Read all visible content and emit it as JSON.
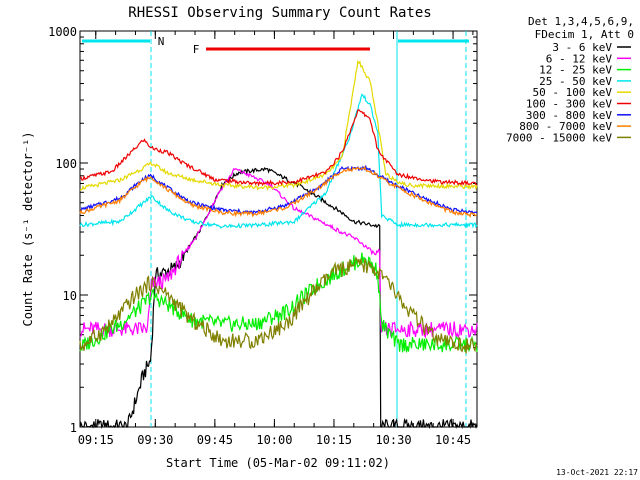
{
  "chart_data": {
    "type": "line",
    "title": "RHESSI Observing Summary Count Rates",
    "xlabel": "Start Time (05-Mar-02 09:11:02)",
    "ylabel": "Count Rate (s⁻¹ detector⁻¹)",
    "y_scale": "log",
    "ylim": [
      1,
      1000
    ],
    "xlim_minutes_after_start": [
      0,
      100
    ],
    "x_ticks": [
      "09:15",
      "09:30",
      "09:45",
      "10:00",
      "10:15",
      "10:30",
      "10:45"
    ],
    "y_ticks": [
      "1",
      "10",
      "100",
      "1000"
    ],
    "legend_header": [
      "Det 1,3,4,5,6,9,",
      "FDecim 1, Att 0"
    ],
    "footer_date": "13-Oct-2021 22:17",
    "markers": {
      "night_label": "N",
      "flare_label": "F",
      "night_color": "#00e5ee",
      "flare_color": "#ee0000"
    },
    "series": [
      {
        "name": "3 - 6 keV",
        "color": "#000000",
        "points": [
          [
            4,
            1
          ],
          [
            12,
            1
          ],
          [
            16,
            2.5
          ],
          [
            17.8,
            3.2
          ],
          [
            19,
            14
          ],
          [
            24,
            16
          ],
          [
            30,
            30
          ],
          [
            36,
            70
          ],
          [
            40,
            85
          ],
          [
            47,
            90
          ],
          [
            55,
            68
          ],
          [
            60,
            55
          ],
          [
            66,
            42
          ],
          [
            69,
            36
          ],
          [
            75.5,
            33
          ],
          [
            75.6,
            1
          ],
          [
            100,
            1
          ]
        ]
      },
      {
        "name": "6 - 12 keV",
        "color": "#ff00ff",
        "points": [
          [
            0,
            5.5
          ],
          [
            17,
            5.5
          ],
          [
            18,
            12
          ],
          [
            22,
            13
          ],
          [
            26,
            20
          ],
          [
            30,
            30
          ],
          [
            35,
            60
          ],
          [
            39,
            90
          ],
          [
            43,
            80
          ],
          [
            48,
            68
          ],
          [
            54,
            45
          ],
          [
            60,
            37
          ],
          [
            64,
            32
          ],
          [
            70,
            26
          ],
          [
            75.5,
            19
          ],
          [
            75.6,
            5.5
          ],
          [
            100,
            5.5
          ]
        ]
      },
      {
        "name": "12 - 25 keV",
        "color": "#00ee00",
        "points": [
          [
            0,
            4
          ],
          [
            10,
            6
          ],
          [
            16,
            8.5
          ],
          [
            18,
            10
          ],
          [
            22,
            8.5
          ],
          [
            28,
            6.5
          ],
          [
            36,
            6
          ],
          [
            44,
            6
          ],
          [
            52,
            7.5
          ],
          [
            60,
            12
          ],
          [
            68,
            17
          ],
          [
            72,
            19
          ],
          [
            75,
            15
          ],
          [
            76,
            6
          ],
          [
            80,
            4.2
          ],
          [
            100,
            4.2
          ]
        ]
      },
      {
        "name": "25 - 50 keV",
        "color": "#00e5ee",
        "points": [
          [
            0,
            34
          ],
          [
            10,
            36
          ],
          [
            16,
            50
          ],
          [
            18,
            56
          ],
          [
            22,
            44
          ],
          [
            28,
            36
          ],
          [
            36,
            33
          ],
          [
            46,
            34
          ],
          [
            54,
            36
          ],
          [
            62,
            60
          ],
          [
            68,
            160
          ],
          [
            71,
            330
          ],
          [
            73,
            280
          ],
          [
            75,
            170
          ],
          [
            76,
            40
          ],
          [
            80,
            34
          ],
          [
            100,
            34
          ]
        ]
      },
      {
        "name": "50 - 100 keV",
        "color": "#e5d900",
        "points": [
          [
            0,
            64
          ],
          [
            10,
            74
          ],
          [
            16,
            92
          ],
          [
            18,
            100
          ],
          [
            22,
            84
          ],
          [
            28,
            75
          ],
          [
            36,
            68
          ],
          [
            46,
            65
          ],
          [
            54,
            68
          ],
          [
            62,
            82
          ],
          [
            66,
            110
          ],
          [
            69,
            380
          ],
          [
            70,
            600
          ],
          [
            73,
            420
          ],
          [
            75,
            200
          ],
          [
            77,
            82
          ],
          [
            82,
            68
          ],
          [
            100,
            66
          ]
        ]
      },
      {
        "name": "100 - 300 keV",
        "color": "#ee0000",
        "points": [
          [
            0,
            76
          ],
          [
            8,
            86
          ],
          [
            14,
            130
          ],
          [
            16,
            150
          ],
          [
            18,
            130
          ],
          [
            22,
            120
          ],
          [
            26,
            100
          ],
          [
            34,
            75
          ],
          [
            44,
            70
          ],
          [
            54,
            72
          ],
          [
            62,
            85
          ],
          [
            66,
            120
          ],
          [
            70,
            250
          ],
          [
            73,
            220
          ],
          [
            75,
            125
          ],
          [
            80,
            82
          ],
          [
            90,
            72
          ],
          [
            100,
            70
          ]
        ]
      },
      {
        "name": "300 - 800 keV",
        "color": "#1010ff",
        "points": [
          [
            0,
            44
          ],
          [
            10,
            54
          ],
          [
            16,
            76
          ],
          [
            18,
            80
          ],
          [
            22,
            65
          ],
          [
            28,
            50
          ],
          [
            36,
            44
          ],
          [
            44,
            42
          ],
          [
            52,
            48
          ],
          [
            60,
            65
          ],
          [
            66,
            90
          ],
          [
            72,
            92
          ],
          [
            78,
            72
          ],
          [
            86,
            55
          ],
          [
            94,
            44
          ],
          [
            100,
            42
          ]
        ]
      },
      {
        "name": "800 - 7000 keV",
        "color": "#ff7f00",
        "points": [
          [
            0,
            42
          ],
          [
            10,
            52
          ],
          [
            16,
            74
          ],
          [
            18,
            78
          ],
          [
            22,
            63
          ],
          [
            28,
            48
          ],
          [
            36,
            42
          ],
          [
            44,
            41
          ],
          [
            52,
            46
          ],
          [
            60,
            64
          ],
          [
            66,
            88
          ],
          [
            72,
            90
          ],
          [
            78,
            70
          ],
          [
            86,
            53
          ],
          [
            94,
            42
          ],
          [
            100,
            40
          ]
        ]
      },
      {
        "name": "7000 - 15000 keV",
        "color": "#808000",
        "points": [
          [
            0,
            4
          ],
          [
            8,
            6
          ],
          [
            14,
            10
          ],
          [
            18,
            12.5
          ],
          [
            22,
            10
          ],
          [
            28,
            6.5
          ],
          [
            36,
            4.5
          ],
          [
            44,
            4.5
          ],
          [
            52,
            6
          ],
          [
            58,
            10
          ],
          [
            64,
            15
          ],
          [
            70,
            17
          ],
          [
            74,
            16
          ],
          [
            78,
            12
          ],
          [
            82,
            8
          ],
          [
            86,
            6
          ],
          [
            90,
            4.5
          ],
          [
            100,
            4
          ]
        ]
      }
    ]
  }
}
